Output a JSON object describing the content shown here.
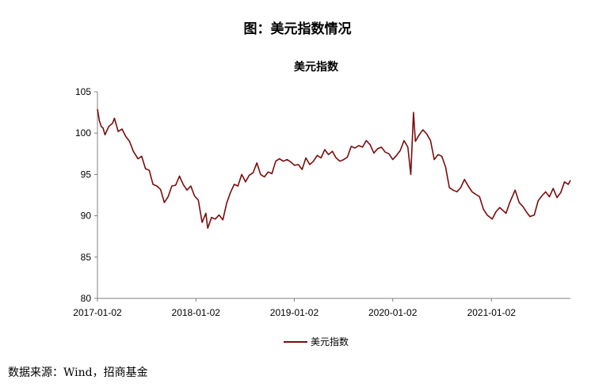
{
  "figure_title": "图：美元指数情况",
  "source": "数据来源：Wind，招商基金",
  "chart_data": {
    "type": "line",
    "title": "美元指数",
    "xlabel": "",
    "ylabel": "",
    "ylim": [
      80,
      105
    ],
    "yticks": [
      80,
      85,
      90,
      95,
      100,
      105
    ],
    "xlim": [
      "2017-01-02",
      "2021-10-22"
    ],
    "xticks": [
      "2017-01-02",
      "2018-01-02",
      "2019-01-02",
      "2020-01-02",
      "2021-01-02"
    ],
    "grid": false,
    "legend": "bottom-center",
    "color": "#7B0C0C",
    "series": [
      {
        "name": "美元指数",
        "points": [
          [
            "2017-01-02",
            102.9
          ],
          [
            "2017-01-09",
            101.5
          ],
          [
            "2017-01-16",
            100.8
          ],
          [
            "2017-01-23",
            100.6
          ],
          [
            "2017-01-30",
            99.8
          ],
          [
            "2017-02-13",
            100.8
          ],
          [
            "2017-02-27",
            101.2
          ],
          [
            "2017-03-06",
            101.8
          ],
          [
            "2017-03-20",
            100.2
          ],
          [
            "2017-04-03",
            100.5
          ],
          [
            "2017-04-17",
            99.6
          ],
          [
            "2017-05-01",
            99.0
          ],
          [
            "2017-05-15",
            97.8
          ],
          [
            "2017-06-01",
            96.9
          ],
          [
            "2017-06-15",
            97.2
          ],
          [
            "2017-06-29",
            95.7
          ],
          [
            "2017-07-13",
            95.5
          ],
          [
            "2017-07-27",
            93.8
          ],
          [
            "2017-08-10",
            93.6
          ],
          [
            "2017-08-24",
            93.2
          ],
          [
            "2017-09-07",
            91.6
          ],
          [
            "2017-09-21",
            92.3
          ],
          [
            "2017-10-05",
            93.6
          ],
          [
            "2017-10-19",
            93.7
          ],
          [
            "2017-11-02",
            94.8
          ],
          [
            "2017-11-16",
            93.8
          ],
          [
            "2017-11-30",
            93.1
          ],
          [
            "2017-12-14",
            93.6
          ],
          [
            "2017-12-28",
            92.4
          ],
          [
            "2018-01-11",
            91.9
          ],
          [
            "2018-01-25",
            89.2
          ],
          [
            "2018-02-08",
            90.3
          ],
          [
            "2018-02-15",
            88.5
          ],
          [
            "2018-03-01",
            89.8
          ],
          [
            "2018-03-15",
            89.6
          ],
          [
            "2018-03-29",
            90.1
          ],
          [
            "2018-04-12",
            89.5
          ],
          [
            "2018-04-26",
            91.5
          ],
          [
            "2018-05-10",
            92.8
          ],
          [
            "2018-05-24",
            93.8
          ],
          [
            "2018-06-07",
            93.6
          ],
          [
            "2018-06-21",
            95.0
          ],
          [
            "2018-07-05",
            94.1
          ],
          [
            "2018-07-19",
            94.9
          ],
          [
            "2018-08-02",
            95.2
          ],
          [
            "2018-08-16",
            96.4
          ],
          [
            "2018-08-30",
            95.0
          ],
          [
            "2018-09-13",
            94.7
          ],
          [
            "2018-09-27",
            95.3
          ],
          [
            "2018-10-11",
            95.1
          ],
          [
            "2018-10-25",
            96.6
          ],
          [
            "2018-11-08",
            96.9
          ],
          [
            "2018-11-22",
            96.6
          ],
          [
            "2018-12-06",
            96.8
          ],
          [
            "2018-12-20",
            96.5
          ],
          [
            "2019-01-03",
            96.1
          ],
          [
            "2019-01-17",
            96.2
          ],
          [
            "2019-01-31",
            95.6
          ],
          [
            "2019-02-14",
            97.0
          ],
          [
            "2019-02-28",
            96.2
          ],
          [
            "2019-03-14",
            96.6
          ],
          [
            "2019-03-28",
            97.3
          ],
          [
            "2019-04-11",
            97.0
          ],
          [
            "2019-04-25",
            98.0
          ],
          [
            "2019-05-09",
            97.4
          ],
          [
            "2019-05-23",
            97.8
          ],
          [
            "2019-06-06",
            97.0
          ],
          [
            "2019-06-20",
            96.6
          ],
          [
            "2019-07-04",
            96.8
          ],
          [
            "2019-07-18",
            97.1
          ],
          [
            "2019-08-01",
            98.4
          ],
          [
            "2019-08-15",
            98.2
          ],
          [
            "2019-08-29",
            98.5
          ],
          [
            "2019-09-12",
            98.3
          ],
          [
            "2019-09-26",
            99.1
          ],
          [
            "2019-10-10",
            98.6
          ],
          [
            "2019-10-24",
            97.6
          ],
          [
            "2019-11-07",
            98.1
          ],
          [
            "2019-11-21",
            98.3
          ],
          [
            "2019-12-05",
            97.7
          ],
          [
            "2019-12-19",
            97.5
          ],
          [
            "2020-01-02",
            96.8
          ],
          [
            "2020-01-16",
            97.3
          ],
          [
            "2020-01-30",
            97.9
          ],
          [
            "2020-02-13",
            99.1
          ],
          [
            "2020-02-27",
            98.3
          ],
          [
            "2020-03-09",
            95.0
          ],
          [
            "2020-03-19",
            102.5
          ],
          [
            "2020-03-26",
            99.0
          ],
          [
            "2020-04-09",
            99.8
          ],
          [
            "2020-04-23",
            100.4
          ],
          [
            "2020-05-07",
            99.9
          ],
          [
            "2020-05-21",
            99.1
          ],
          [
            "2020-06-04",
            96.8
          ],
          [
            "2020-06-18",
            97.4
          ],
          [
            "2020-07-02",
            97.2
          ],
          [
            "2020-07-16",
            95.9
          ],
          [
            "2020-07-30",
            93.4
          ],
          [
            "2020-08-13",
            93.1
          ],
          [
            "2020-08-27",
            92.9
          ],
          [
            "2020-09-10",
            93.4
          ],
          [
            "2020-09-24",
            94.4
          ],
          [
            "2020-10-08",
            93.6
          ],
          [
            "2020-10-22",
            92.9
          ],
          [
            "2020-11-05",
            92.6
          ],
          [
            "2020-11-19",
            92.3
          ],
          [
            "2020-12-03",
            90.8
          ],
          [
            "2020-12-17",
            90.1
          ],
          [
            "2021-01-05",
            89.6
          ],
          [
            "2021-01-19",
            90.5
          ],
          [
            "2021-02-02",
            91.0
          ],
          [
            "2021-02-25",
            90.3
          ],
          [
            "2021-03-11",
            91.6
          ],
          [
            "2021-03-31",
            93.1
          ],
          [
            "2021-04-15",
            91.6
          ],
          [
            "2021-04-29",
            91.1
          ],
          [
            "2021-05-13",
            90.4
          ],
          [
            "2021-05-25",
            89.9
          ],
          [
            "2021-06-10",
            90.1
          ],
          [
            "2021-06-24",
            91.8
          ],
          [
            "2021-07-08",
            92.4
          ],
          [
            "2021-07-22",
            92.9
          ],
          [
            "2021-08-05",
            92.3
          ],
          [
            "2021-08-19",
            93.3
          ],
          [
            "2021-09-02",
            92.2
          ],
          [
            "2021-09-16",
            92.8
          ],
          [
            "2021-09-30",
            94.1
          ],
          [
            "2021-10-14",
            93.8
          ],
          [
            "2021-10-22",
            94.3
          ]
        ]
      }
    ]
  }
}
